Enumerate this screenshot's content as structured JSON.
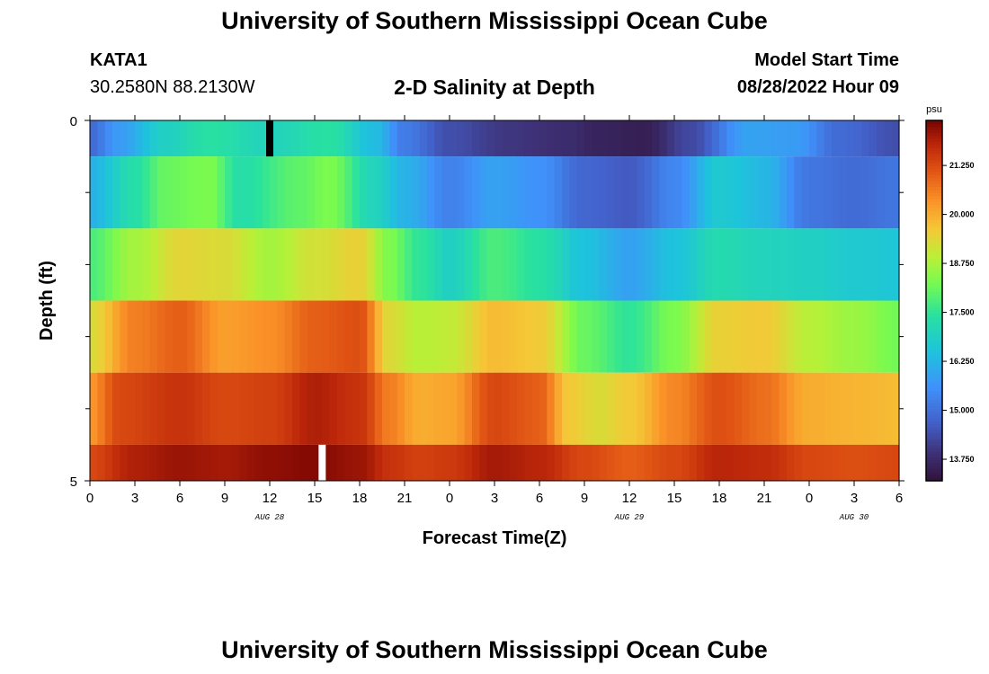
{
  "header": {
    "title": "University of Southern Mississippi Ocean Cube",
    "station": "KATA1",
    "coords": "30.2580N  88.2130W",
    "subtitle": "2-D Salinity at Depth",
    "start_label": "Model Start Time",
    "start_value": "08/28/2022 Hour 09"
  },
  "footer": {
    "title": "University of Southern Mississippi Ocean Cube"
  },
  "chart_data": {
    "type": "heatmap",
    "title": "2-D Salinity at Depth",
    "xlabel": "Forecast Time(Z)",
    "ylabel": "Depth (ft)",
    "x_range_hours": [
      0,
      54
    ],
    "x_ticks": [
      {
        "h": 0,
        "label": "0"
      },
      {
        "h": 3,
        "label": "3"
      },
      {
        "h": 6,
        "label": "6"
      },
      {
        "h": 9,
        "label": "9"
      },
      {
        "h": 12,
        "label": "12"
      },
      {
        "h": 15,
        "label": "15"
      },
      {
        "h": 18,
        "label": "18"
      },
      {
        "h": 21,
        "label": "21"
      },
      {
        "h": 24,
        "label": "0"
      },
      {
        "h": 27,
        "label": "3"
      },
      {
        "h": 30,
        "label": "6"
      },
      {
        "h": 33,
        "label": "9"
      },
      {
        "h": 36,
        "label": "12"
      },
      {
        "h": 39,
        "label": "15"
      },
      {
        "h": 42,
        "label": "18"
      },
      {
        "h": 45,
        "label": "21"
      },
      {
        "h": 48,
        "label": "0"
      },
      {
        "h": 51,
        "label": "3"
      },
      {
        "h": 54,
        "label": "6"
      }
    ],
    "date_labels": [
      {
        "h": 12,
        "label": "AUG 28"
      },
      {
        "h": 36,
        "label": "AUG 29"
      },
      {
        "h": 51,
        "label": "AUG 30"
      }
    ],
    "y_range_ft": [
      0,
      5
    ],
    "y_ticks": [
      {
        "d": 0,
        "label": "0"
      },
      {
        "d": 5,
        "label": "5"
      }
    ],
    "y_minor_ticks": [
      1,
      2,
      3,
      4
    ],
    "layer_bounds_ft": [
      [
        0,
        0.5
      ],
      [
        0.5,
        1.5
      ],
      [
        1.5,
        2.5
      ],
      [
        2.5,
        3.5
      ],
      [
        3.5,
        4.5
      ],
      [
        4.5,
        5
      ]
    ],
    "colorbar": {
      "unit": "psu",
      "min": 13.2,
      "max": 22.4,
      "labels": [
        "21.250",
        "20.000",
        "18.750",
        "17.500",
        "16.250",
        "15.000",
        "13.750"
      ],
      "label_values": [
        21.25,
        20.0,
        18.75,
        17.5,
        16.25,
        15.0,
        13.75
      ]
    },
    "layers": [
      {
        "name": "layer-1",
        "keys": [
          [
            0,
            14.9
          ],
          [
            2,
            15.8
          ],
          [
            5,
            16.9
          ],
          [
            8,
            17.4
          ],
          [
            12,
            17.0
          ],
          [
            16,
            17.4
          ],
          [
            19,
            16.4
          ],
          [
            21,
            15.2
          ],
          [
            24,
            14.4
          ],
          [
            28,
            14.0
          ],
          [
            32,
            13.8
          ],
          [
            34,
            13.6
          ],
          [
            37,
            13.5
          ],
          [
            40,
            14.3
          ],
          [
            44,
            15.9
          ],
          [
            47,
            15.8
          ],
          [
            50,
            14.9
          ],
          [
            54,
            14.4
          ]
        ]
      },
      {
        "name": "layer-2",
        "keys": [
          [
            0,
            16.2
          ],
          [
            3,
            17.3
          ],
          [
            5,
            18.1
          ],
          [
            8,
            18.3
          ],
          [
            10,
            17.3
          ],
          [
            14,
            18.0
          ],
          [
            16,
            18.3
          ],
          [
            19,
            17.0
          ],
          [
            21,
            16.2
          ],
          [
            24,
            15.3
          ],
          [
            27,
            15.9
          ],
          [
            30,
            15.6
          ],
          [
            33,
            14.8
          ],
          [
            36,
            14.6
          ],
          [
            39,
            15.4
          ],
          [
            42,
            16.7
          ],
          [
            45,
            16.3
          ],
          [
            48,
            15.1
          ],
          [
            51,
            14.9
          ],
          [
            54,
            15.1
          ]
        ]
      },
      {
        "name": "layer-3",
        "keys": [
          [
            0,
            17.8
          ],
          [
            3,
            18.7
          ],
          [
            6,
            19.4
          ],
          [
            9,
            19.3
          ],
          [
            12,
            18.7
          ],
          [
            15,
            19.2
          ],
          [
            18,
            19.5
          ],
          [
            20,
            18.3
          ],
          [
            22,
            17.5
          ],
          [
            24,
            16.9
          ],
          [
            27,
            17.8
          ],
          [
            30,
            17.4
          ],
          [
            33,
            16.5
          ],
          [
            36,
            15.9
          ],
          [
            39,
            16.5
          ],
          [
            42,
            17.2
          ],
          [
            45,
            17.0
          ],
          [
            48,
            16.9
          ],
          [
            51,
            16.7
          ],
          [
            54,
            16.6
          ]
        ]
      },
      {
        "name": "layer-4",
        "keys": [
          [
            0,
            19.3
          ],
          [
            3,
            20.6
          ],
          [
            6,
            21.0
          ],
          [
            9,
            20.2
          ],
          [
            12,
            20.4
          ],
          [
            15,
            21.0
          ],
          [
            18,
            21.2
          ],
          [
            20,
            19.3
          ],
          [
            22,
            18.9
          ],
          [
            24,
            19.0
          ],
          [
            27,
            19.8
          ],
          [
            30,
            19.6
          ],
          [
            33,
            18.1
          ],
          [
            36,
            17.5
          ],
          [
            39,
            18.3
          ],
          [
            42,
            19.5
          ],
          [
            45,
            19.6
          ],
          [
            48,
            18.9
          ],
          [
            51,
            18.6
          ],
          [
            54,
            18.2
          ]
        ]
      },
      {
        "name": "layer-5",
        "keys": [
          [
            0,
            20.3
          ],
          [
            2,
            21.3
          ],
          [
            6,
            21.6
          ],
          [
            9,
            21.3
          ],
          [
            12,
            21.4
          ],
          [
            15,
            21.9
          ],
          [
            18,
            21.6
          ],
          [
            20,
            20.6
          ],
          [
            22,
            20.0
          ],
          [
            24,
            20.1
          ],
          [
            27,
            21.3
          ],
          [
            30,
            21.0
          ],
          [
            32,
            19.6
          ],
          [
            34,
            19.3
          ],
          [
            36,
            19.6
          ],
          [
            39,
            20.5
          ],
          [
            42,
            21.2
          ],
          [
            45,
            20.8
          ],
          [
            48,
            20.0
          ],
          [
            51,
            19.9
          ],
          [
            54,
            19.8
          ]
        ]
      },
      {
        "name": "layer-6",
        "keys": [
          [
            0,
            21.3
          ],
          [
            3,
            21.9
          ],
          [
            6,
            22.1
          ],
          [
            9,
            22.0
          ],
          [
            12,
            22.2
          ],
          [
            15,
            22.3
          ],
          [
            18,
            22.1
          ],
          [
            20,
            21.6
          ],
          [
            22,
            21.4
          ],
          [
            24,
            21.5
          ],
          [
            27,
            22.0
          ],
          [
            30,
            21.8
          ],
          [
            33,
            21.3
          ],
          [
            36,
            21.0
          ],
          [
            39,
            21.3
          ],
          [
            42,
            21.8
          ],
          [
            45,
            21.7
          ],
          [
            48,
            21.3
          ],
          [
            51,
            21.2
          ],
          [
            54,
            21.3
          ]
        ]
      }
    ],
    "markers": [
      {
        "name": "current-time-marker-surface",
        "h": 12,
        "layer": 0,
        "color": "#000000"
      },
      {
        "name": "current-time-marker-bottom",
        "h": 15.5,
        "layer": 5,
        "color": "#ffffff"
      }
    ]
  }
}
